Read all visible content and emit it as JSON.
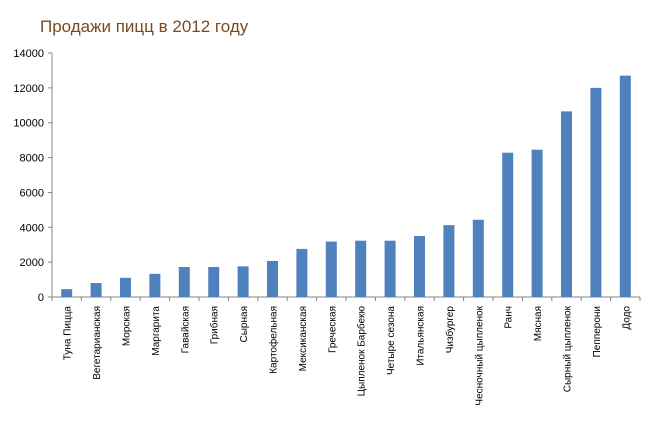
{
  "chart_data": {
    "type": "bar",
    "title": "Продажи пицц в 2012 году",
    "xlabel": "",
    "ylabel": "",
    "ylim": [
      0,
      14000
    ],
    "yticks": [
      0,
      2000,
      4000,
      6000,
      8000,
      10000,
      12000,
      14000
    ],
    "grid": false,
    "legend": "none",
    "bar_color": "#4f81bd",
    "title_color": "#7a4a1e",
    "categories": [
      "Туна Пицца",
      "Вегетарианская",
      "Морская",
      "Маргарита",
      "Гавайская",
      "Грибная",
      "Сырная",
      "Картофельная",
      "Мексиканская",
      "Греческая",
      "Цыпленок Барбекю",
      "Четыре сезона",
      "Итальянская",
      "Чизбургер",
      "Чесночный цыпленок",
      "Ранч",
      "Мясная",
      "Сырный цыпленок",
      "Пепперони",
      "Додо"
    ],
    "values": [
      450,
      800,
      1100,
      1330,
      1720,
      1720,
      1760,
      2070,
      2760,
      3180,
      3230,
      3230,
      3500,
      4120,
      4430,
      8280,
      8450,
      10650,
      12000,
      12700
    ]
  }
}
